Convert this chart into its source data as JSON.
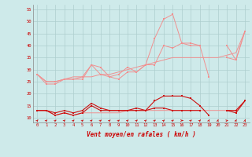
{
  "xlabel": "Vent moyen/en rafales ( km/h )",
  "background_color": "#ceeaea",
  "grid_color": "#aecece",
  "x": [
    0,
    1,
    2,
    3,
    4,
    5,
    6,
    7,
    8,
    9,
    10,
    11,
    12,
    13,
    14,
    15,
    16,
    17,
    18,
    19,
    20,
    21,
    22,
    23
  ],
  "line_rafales1": [
    28,
    25,
    25,
    26,
    26,
    27,
    32,
    31,
    27,
    28,
    31,
    29,
    32,
    32,
    40,
    39,
    41,
    40,
    40,
    27,
    null,
    35,
    34,
    46
  ],
  "line_rafales2": [
    28,
    24,
    24,
    26,
    26,
    26,
    32,
    28,
    27,
    26,
    29,
    29,
    32,
    43,
    51,
    53,
    41,
    41,
    40,
    null,
    null,
    40,
    34,
    46
  ],
  "line_trend_top": [
    28,
    25,
    25,
    26,
    27,
    27,
    27,
    28,
    28,
    29,
    30,
    31,
    32,
    33,
    34,
    35,
    35,
    35,
    35,
    35,
    35,
    36,
    37,
    46
  ],
  "line_trend_bot": [
    13,
    13,
    11,
    12,
    11,
    12,
    12,
    12,
    12,
    12,
    13,
    13,
    13,
    13,
    13,
    13,
    13,
    13,
    13,
    13,
    13,
    13,
    13,
    17
  ],
  "line_moyen1": [
    13,
    13,
    12,
    13,
    12,
    13,
    16,
    14,
    13,
    13,
    13,
    14,
    13,
    14,
    14,
    13,
    13,
    13,
    13,
    null,
    null,
    13,
    13,
    17
  ],
  "line_moyen2": [
    13,
    13,
    11,
    12,
    11,
    12,
    15,
    13,
    13,
    13,
    13,
    13,
    13,
    17,
    19,
    19,
    19,
    18,
    15,
    11,
    null,
    13,
    12,
    17
  ],
  "color_light": "#f09090",
  "color_dark": "#cc1010",
  "ylim": [
    8,
    57
  ],
  "yticks": [
    10,
    15,
    20,
    25,
    30,
    35,
    40,
    45,
    50,
    55
  ],
  "xticks": [
    0,
    1,
    2,
    3,
    4,
    5,
    6,
    7,
    8,
    9,
    10,
    11,
    12,
    13,
    14,
    15,
    16,
    17,
    18,
    19,
    20,
    21,
    22,
    23
  ],
  "arrow_angles": [
    45,
    55,
    60,
    50,
    55,
    60,
    55,
    60,
    55,
    60,
    55,
    55,
    55,
    60,
    55,
    60,
    90,
    55,
    45,
    30,
    20,
    80,
    30,
    15
  ]
}
